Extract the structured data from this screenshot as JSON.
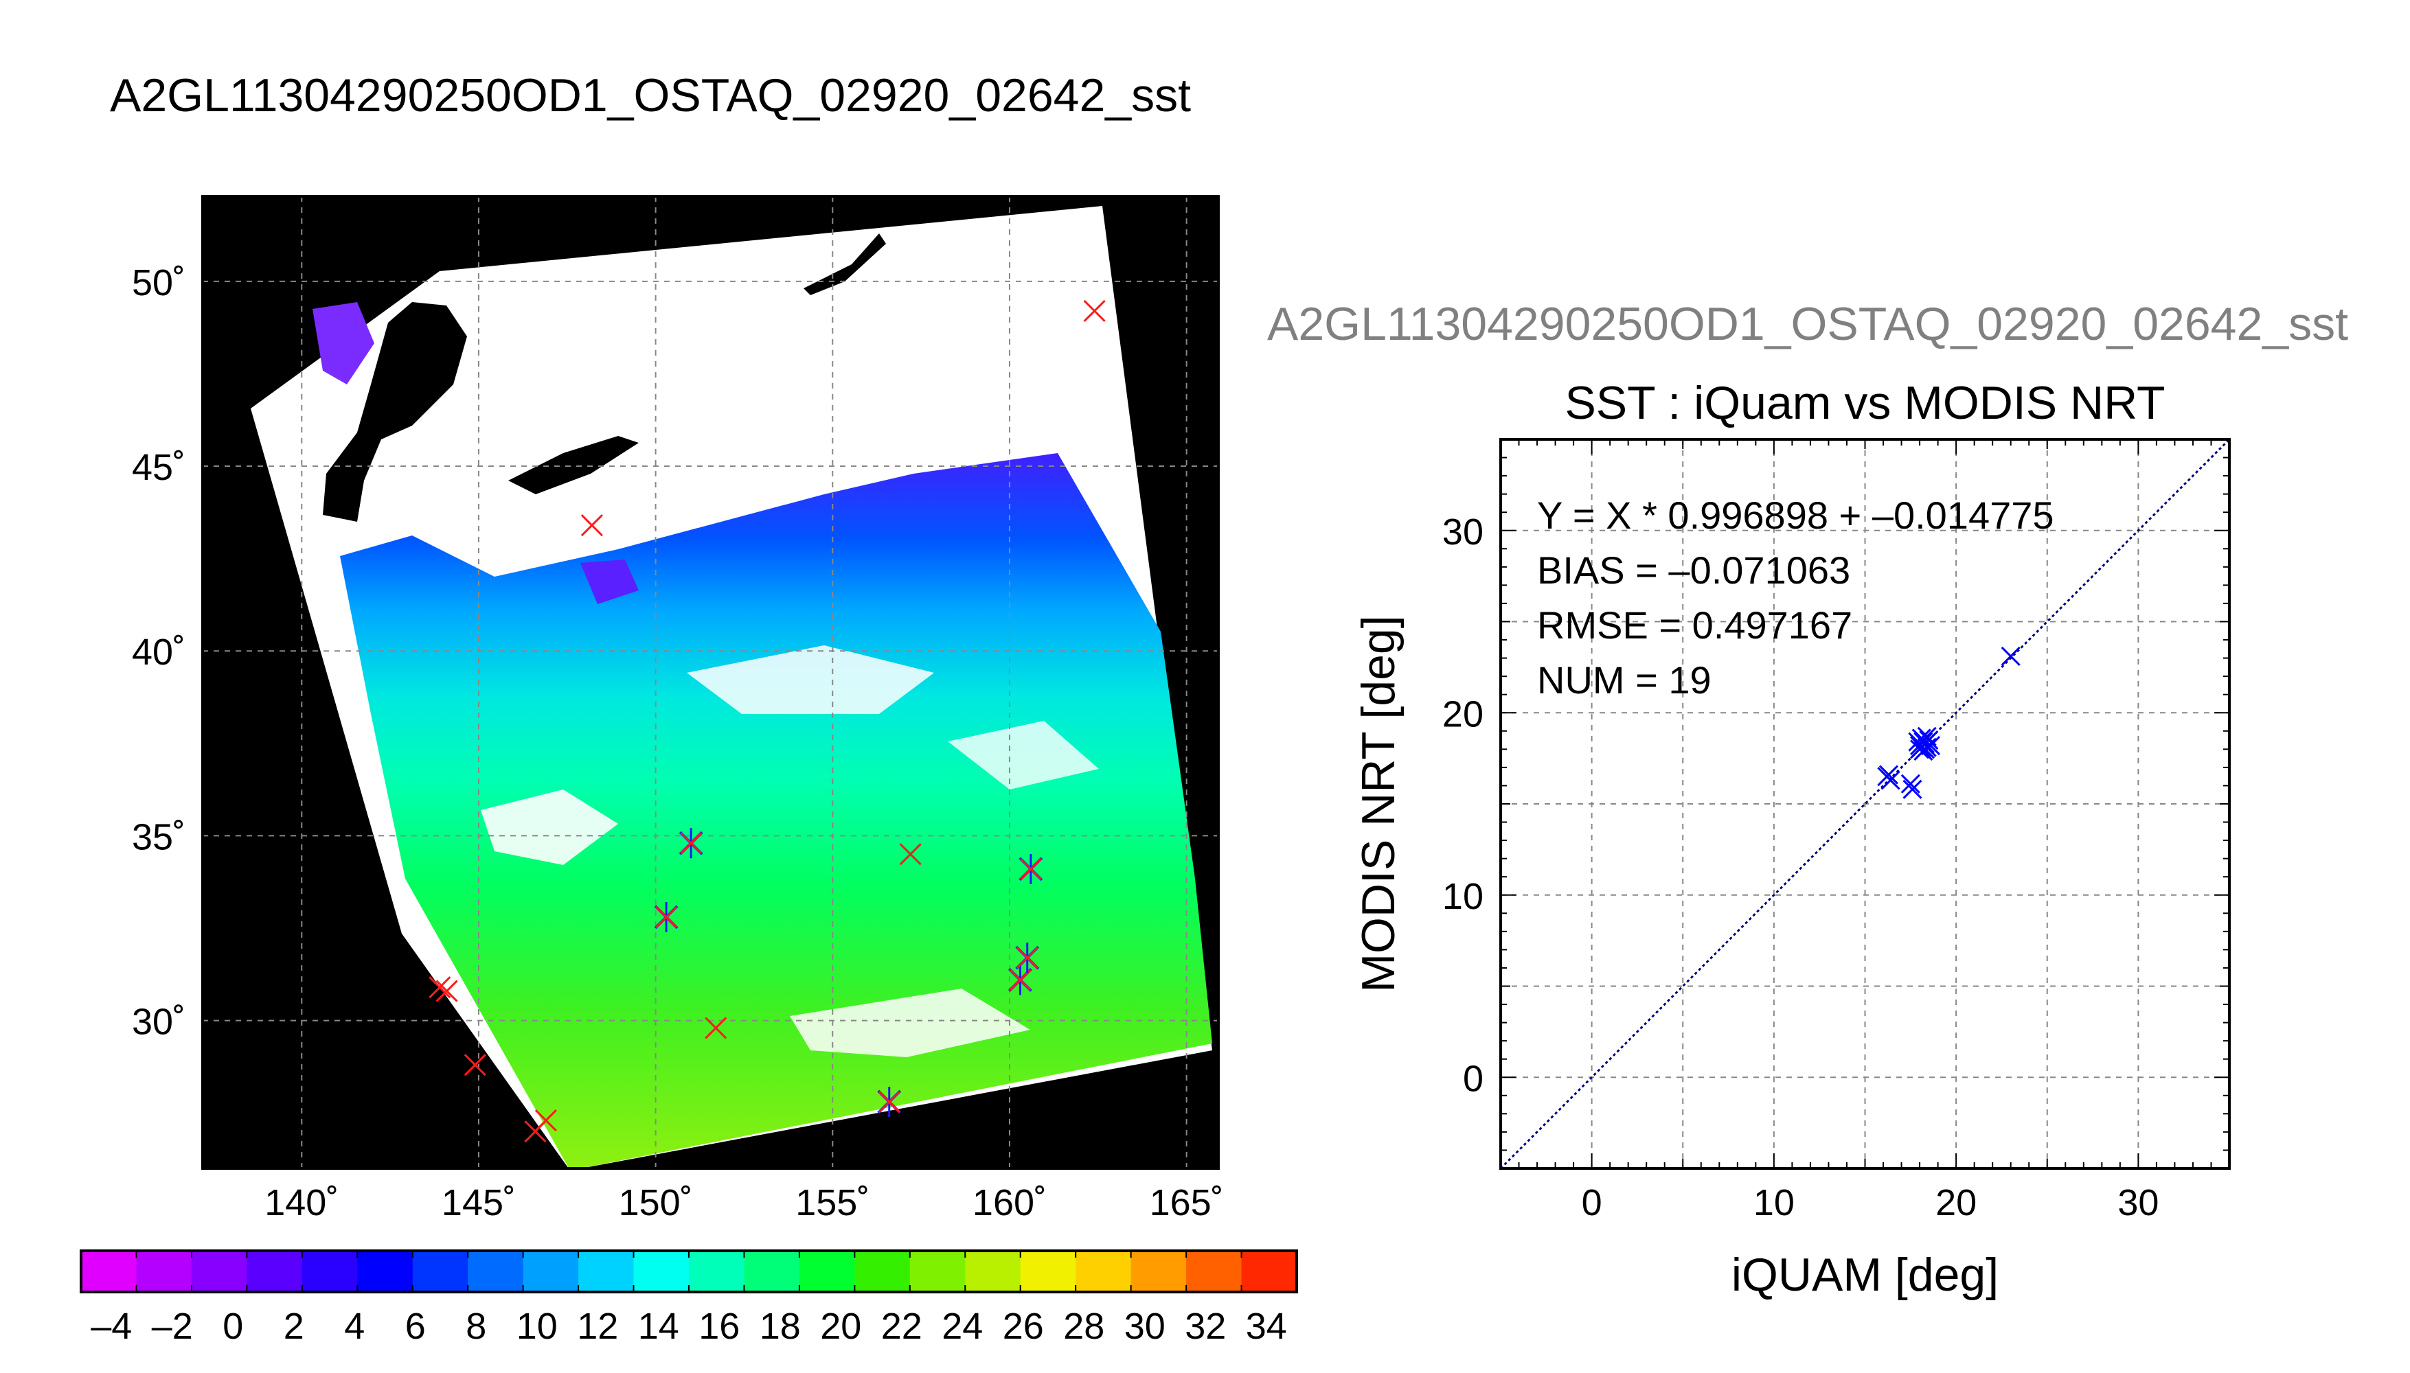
{
  "page_title": "A2GL11304290250OD1_OSTAQ_02920_02642_sst",
  "chart_data": [
    {
      "type": "map",
      "lon_ticks": [
        140,
        145,
        150,
        155,
        160,
        165
      ],
      "lat_ticks": [
        30,
        35,
        40,
        45,
        50
      ],
      "lon_tick_labels": [
        "140˚",
        "145˚",
        "150˚",
        "155˚",
        "160˚",
        "165˚"
      ],
      "lat_tick_labels": [
        "30˚",
        "35˚",
        "40˚",
        "45˚",
        "50˚"
      ],
      "lon_range": [
        137.2,
        165.9
      ],
      "lat_range": [
        26.0,
        52.3
      ],
      "grid": true,
      "background": "#000000",
      "matchups": [
        {
          "lon": 143.9,
          "lat": 30.9,
          "paired": false
        },
        {
          "lon": 144.1,
          "lat": 30.8,
          "paired": false
        },
        {
          "lon": 144.9,
          "lat": 28.8,
          "paired": false
        },
        {
          "lon": 146.6,
          "lat": 27.0,
          "paired": false
        },
        {
          "lon": 146.9,
          "lat": 27.3,
          "paired": false
        },
        {
          "lon": 148.2,
          "lat": 43.4,
          "paired": false
        },
        {
          "lon": 150.3,
          "lat": 32.8,
          "paired": true
        },
        {
          "lon": 151.0,
          "lat": 34.8,
          "paired": true
        },
        {
          "lon": 151.7,
          "lat": 29.8,
          "paired": false
        },
        {
          "lon": 156.6,
          "lat": 27.8,
          "paired": true
        },
        {
          "lon": 157.2,
          "lat": 34.5,
          "paired": false
        },
        {
          "lon": 160.3,
          "lat": 31.1,
          "paired": true
        },
        {
          "lon": 160.5,
          "lat": 31.7,
          "paired": true
        },
        {
          "lon": 160.6,
          "lat": 34.1,
          "paired": true
        },
        {
          "lon": 162.4,
          "lat": 49.2,
          "paired": false
        }
      ]
    },
    {
      "type": "scatter",
      "title": "A2GL11304290250OD1_OSTAQ_02920_02642_sst",
      "subtitle": "SST : iQuam vs MODIS NRT",
      "xlabel": "iQUAM [deg]",
      "ylabel": "MODIS NRT [deg]",
      "xlim": [
        -5,
        35
      ],
      "ylim": [
        -5,
        35
      ],
      "x_ticks": [
        0,
        10,
        20,
        30
      ],
      "y_ticks": [
        0,
        10,
        20,
        30
      ],
      "grid": true,
      "reference_line": {
        "slope": 1,
        "intercept": 0,
        "style": "dotted"
      },
      "annotations": [
        "Y = X * 0.996898 + –0.014775",
        "BIAS = –0.071063",
        "RMSE = 0.497167",
        "NUM = 19"
      ],
      "points": [
        {
          "x": 16.2,
          "y": 16.5
        },
        {
          "x": 16.4,
          "y": 16.3
        },
        {
          "x": 16.3,
          "y": 16.6
        },
        {
          "x": 17.5,
          "y": 16.1
        },
        {
          "x": 17.6,
          "y": 15.8
        },
        {
          "x": 18.0,
          "y": 18.2
        },
        {
          "x": 18.2,
          "y": 18.4
        },
        {
          "x": 18.4,
          "y": 18.1
        },
        {
          "x": 18.1,
          "y": 18.6
        },
        {
          "x": 18.3,
          "y": 18.3
        },
        {
          "x": 18.5,
          "y": 18.5
        },
        {
          "x": 18.0,
          "y": 18.0
        },
        {
          "x": 18.6,
          "y": 18.2
        },
        {
          "x": 18.2,
          "y": 17.9
        },
        {
          "x": 17.9,
          "y": 18.4
        },
        {
          "x": 18.4,
          "y": 18.7
        },
        {
          "x": 18.1,
          "y": 18.1
        },
        {
          "x": 18.3,
          "y": 18.0
        },
        {
          "x": 23.0,
          "y": 23.1
        }
      ],
      "point_color": "#0000ff"
    },
    {
      "type": "colorbar",
      "range": [
        -5,
        35
      ],
      "tick_values": [
        -4,
        -2,
        0,
        2,
        4,
        6,
        8,
        10,
        12,
        14,
        16,
        18,
        20,
        22,
        24,
        26,
        28,
        30,
        32,
        34
      ],
      "tick_labels": [
        "–4",
        "–2",
        "0",
        "2",
        "4",
        "6",
        "8",
        "10",
        "12",
        "14",
        "16",
        "18",
        "20",
        "22",
        "24",
        "26",
        "28",
        "30",
        "32",
        "34"
      ],
      "colors": [
        "#e000ff",
        "#b400ff",
        "#8800ff",
        "#5a00ff",
        "#2a00ff",
        "#0000ff",
        "#0034ff",
        "#006cff",
        "#00a0ff",
        "#00d2ff",
        "#00fff0",
        "#00ffb8",
        "#00ff78",
        "#00ff30",
        "#34f000",
        "#7ef000",
        "#b8f000",
        "#f0f000",
        "#ffd000",
        "#ff9c00",
        "#ff6000",
        "#ff2800"
      ]
    }
  ]
}
